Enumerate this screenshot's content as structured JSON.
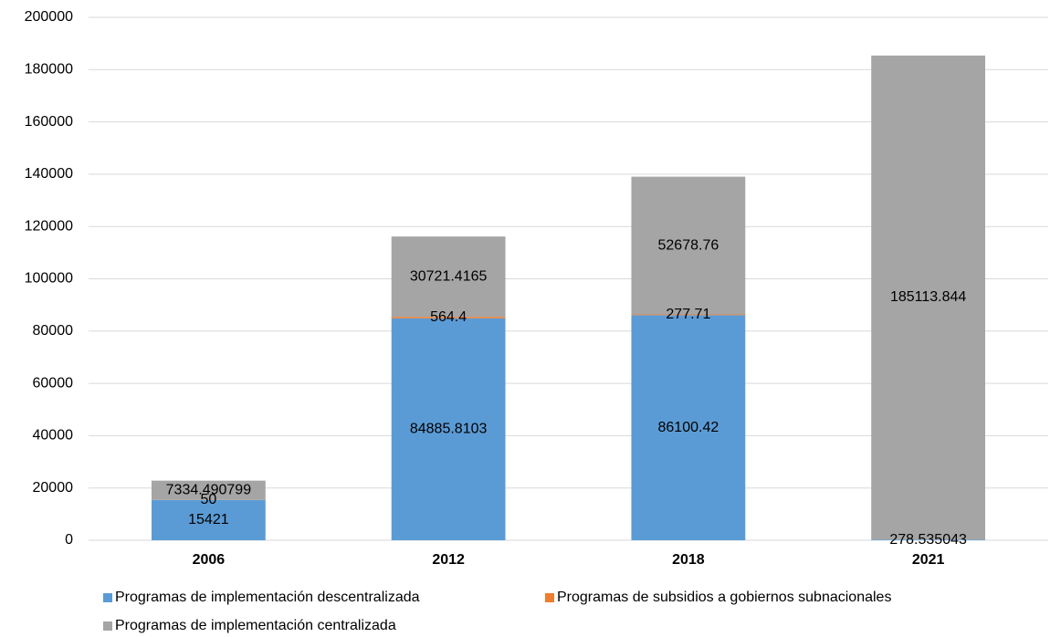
{
  "chart_data": {
    "type": "stacked_bar",
    "categories": [
      "2006",
      "2012",
      "2018",
      "2021"
    ],
    "series": [
      {
        "name": "Programas de implementación descentralizada",
        "color": "#5b9bd5",
        "values": [
          15421,
          84885.8103,
          86100.42,
          278.535043
        ]
      },
      {
        "name": "Programas de subsidios a gobiernos subnacionales",
        "color": "#ed7d31",
        "values": [
          50,
          564.4,
          277.71,
          null
        ]
      },
      {
        "name": "Programas de implementación centralizada",
        "color": "#a5a5a5",
        "values": [
          7334.490799,
          30721.4165,
          52678.76,
          185113.844
        ]
      }
    ],
    "ylim": [
      0,
      200000
    ],
    "yticks": [
      0,
      20000,
      40000,
      60000,
      80000,
      100000,
      120000,
      140000,
      160000,
      180000,
      200000
    ],
    "grid": true
  }
}
